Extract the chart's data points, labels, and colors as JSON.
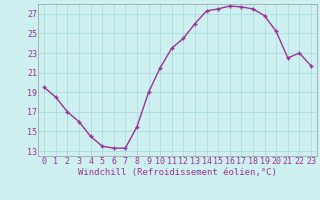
{
  "x": [
    0,
    1,
    2,
    3,
    4,
    5,
    6,
    7,
    8,
    9,
    10,
    11,
    12,
    13,
    14,
    15,
    16,
    17,
    18,
    19,
    20,
    21,
    22,
    23
  ],
  "y": [
    19.5,
    18.5,
    17.0,
    16.0,
    14.5,
    13.5,
    13.3,
    13.3,
    15.5,
    19.0,
    21.5,
    23.5,
    24.5,
    26.0,
    27.3,
    27.5,
    27.8,
    27.7,
    27.5,
    26.8,
    25.2,
    22.5,
    23.0,
    21.7
  ],
  "line_color": "#993399",
  "marker": "+",
  "marker_size": 3,
  "marker_linewidth": 1.0,
  "line_width": 1.0,
  "xlabel": "Windchill (Refroidissement éolien,°C)",
  "xlim_min": -0.5,
  "xlim_max": 23.5,
  "ylim_min": 12.5,
  "ylim_max": 28.0,
  "yticks": [
    13,
    15,
    17,
    19,
    21,
    23,
    25,
    27
  ],
  "xticks": [
    0,
    1,
    2,
    3,
    4,
    5,
    6,
    7,
    8,
    9,
    10,
    11,
    12,
    13,
    14,
    15,
    16,
    17,
    18,
    19,
    20,
    21,
    22,
    23
  ],
  "bg_color": "#cff0f0",
  "grid_color": "#aadddd",
  "spine_color": "#999999",
  "font_color": "#993399",
  "tick_fontsize": 6,
  "xlabel_fontsize": 6.5
}
